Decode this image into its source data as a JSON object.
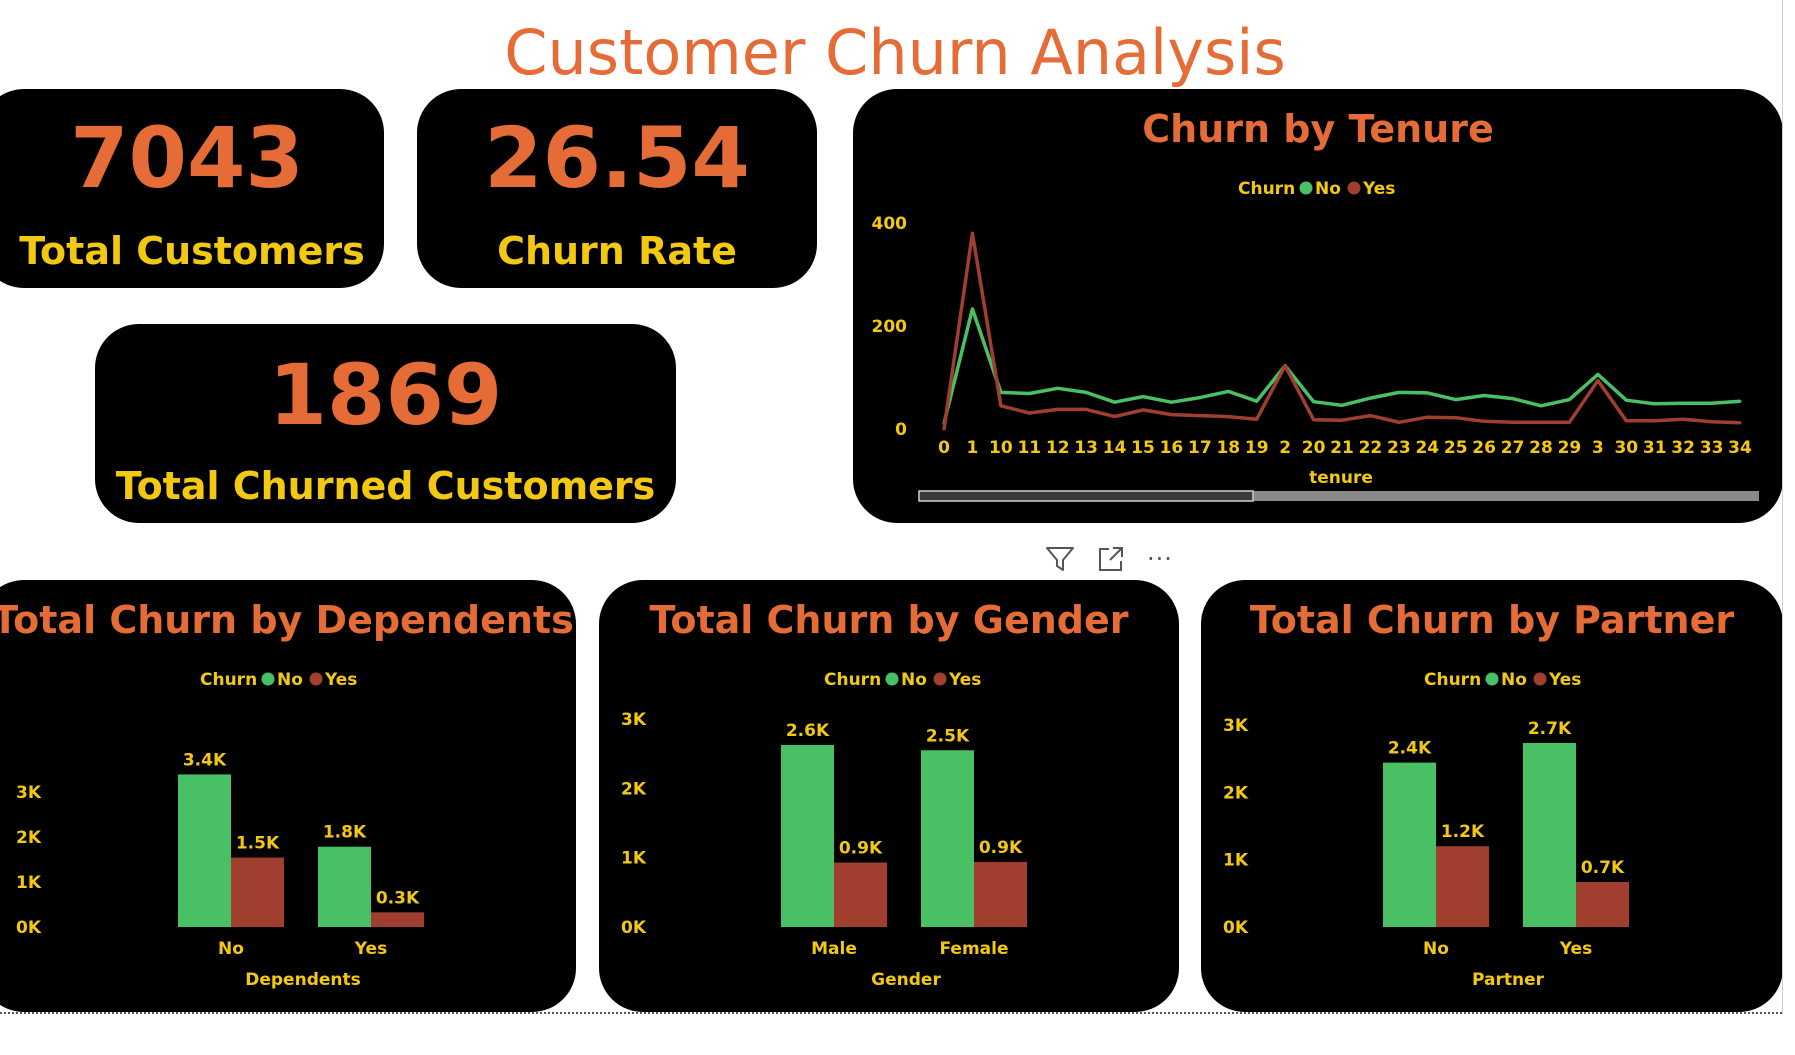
{
  "title": "Customer Churn Analysis",
  "colors": {
    "accent": "#e66c37",
    "label": "#f2c811",
    "no": "#4ac064",
    "yes": "#a03f2f",
    "card": "#000000"
  },
  "kpis": {
    "total_customers": {
      "value": "7043",
      "label": "Total Customers"
    },
    "churn_rate": {
      "value": "26.54",
      "label": "Churn Rate"
    },
    "churned": {
      "value": "1869",
      "label": "Total Churned Customers"
    }
  },
  "toolbar": {
    "icons": [
      "filter-icon",
      "focus-mode-icon",
      "more-options-icon"
    ],
    "more": "···"
  },
  "chart_data": [
    {
      "type": "line",
      "title": "Churn by Tenure",
      "xlabel": "tenure",
      "ylabel": "",
      "legend_title": "Churn",
      "legend_position": "top-center",
      "ylim": [
        0,
        400
      ],
      "yticks": [
        0,
        200,
        400
      ],
      "categories": [
        "0",
        "1",
        "10",
        "11",
        "12",
        "13",
        "14",
        "15",
        "16",
        "17",
        "18",
        "19",
        "2",
        "20",
        "21",
        "22",
        "23",
        "24",
        "25",
        "26",
        "27",
        "28",
        "29",
        "3",
        "30",
        "31",
        "32",
        "33",
        "34"
      ],
      "series": [
        {
          "name": "No",
          "values": [
            11,
            233,
            71,
            69,
            79,
            71,
            52,
            63,
            52,
            61,
            73,
            54,
            123,
            53,
            46,
            60,
            71,
            70,
            57,
            65,
            59,
            45,
            57,
            106,
            56,
            49,
            50,
            50,
            54
          ]
        },
        {
          "name": "Yes",
          "values": [
            0,
            380,
            45,
            31,
            38,
            38,
            24,
            37,
            28,
            26,
            24,
            19,
            123,
            18,
            17,
            26,
            13,
            23,
            22,
            15,
            13,
            13,
            13,
            94,
            16,
            16,
            19,
            14,
            12
          ]
        }
      ],
      "scrollbar": "horizontal"
    },
    {
      "type": "bar",
      "title": "Total Churn by Dependents",
      "xlabel": "Dependents",
      "ylabel": "",
      "legend_title": "Churn",
      "legend_position": "top-center",
      "ylim": [
        0,
        3600
      ],
      "yticks": [
        "0K",
        "1K",
        "2K",
        "3K"
      ],
      "categories": [
        "No",
        "Yes"
      ],
      "series": [
        {
          "name": "No",
          "values": [
            3390,
            1784
          ],
          "labels": [
            "3.4K",
            "1.8K"
          ]
        },
        {
          "name": "Yes",
          "values": [
            1543,
            326
          ],
          "labels": [
            "1.5K",
            "0.3K"
          ]
        }
      ]
    },
    {
      "type": "bar",
      "title": "Total Churn by Gender",
      "xlabel": "Gender",
      "ylabel": "",
      "legend_title": "Churn",
      "legend_position": "top-center",
      "ylim": [
        0,
        3000
      ],
      "yticks": [
        "0K",
        "1K",
        "2K",
        "3K"
      ],
      "categories": [
        "Male",
        "Female"
      ],
      "series": [
        {
          "name": "No",
          "values": [
            2625,
            2549
          ],
          "labels": [
            "2.6K",
            "2.5K"
          ]
        },
        {
          "name": "Yes",
          "values": [
            930,
            939
          ],
          "labels": [
            "0.9K",
            "0.9K"
          ]
        }
      ]
    },
    {
      "type": "bar",
      "title": "Total Churn by Partner",
      "xlabel": "Partner",
      "ylabel": "",
      "legend_title": "Churn",
      "legend_position": "top-center",
      "ylim": [
        0,
        3000
      ],
      "yticks": [
        "0K",
        "1K",
        "2K",
        "3K"
      ],
      "categories": [
        "No",
        "Yes"
      ],
      "series": [
        {
          "name": "No",
          "values": [
            2441,
            2733
          ],
          "labels": [
            "2.4K",
            "2.7K"
          ]
        },
        {
          "name": "Yes",
          "values": [
            1200,
            669
          ],
          "labels": [
            "1.2K",
            "0.7K"
          ]
        }
      ]
    }
  ]
}
